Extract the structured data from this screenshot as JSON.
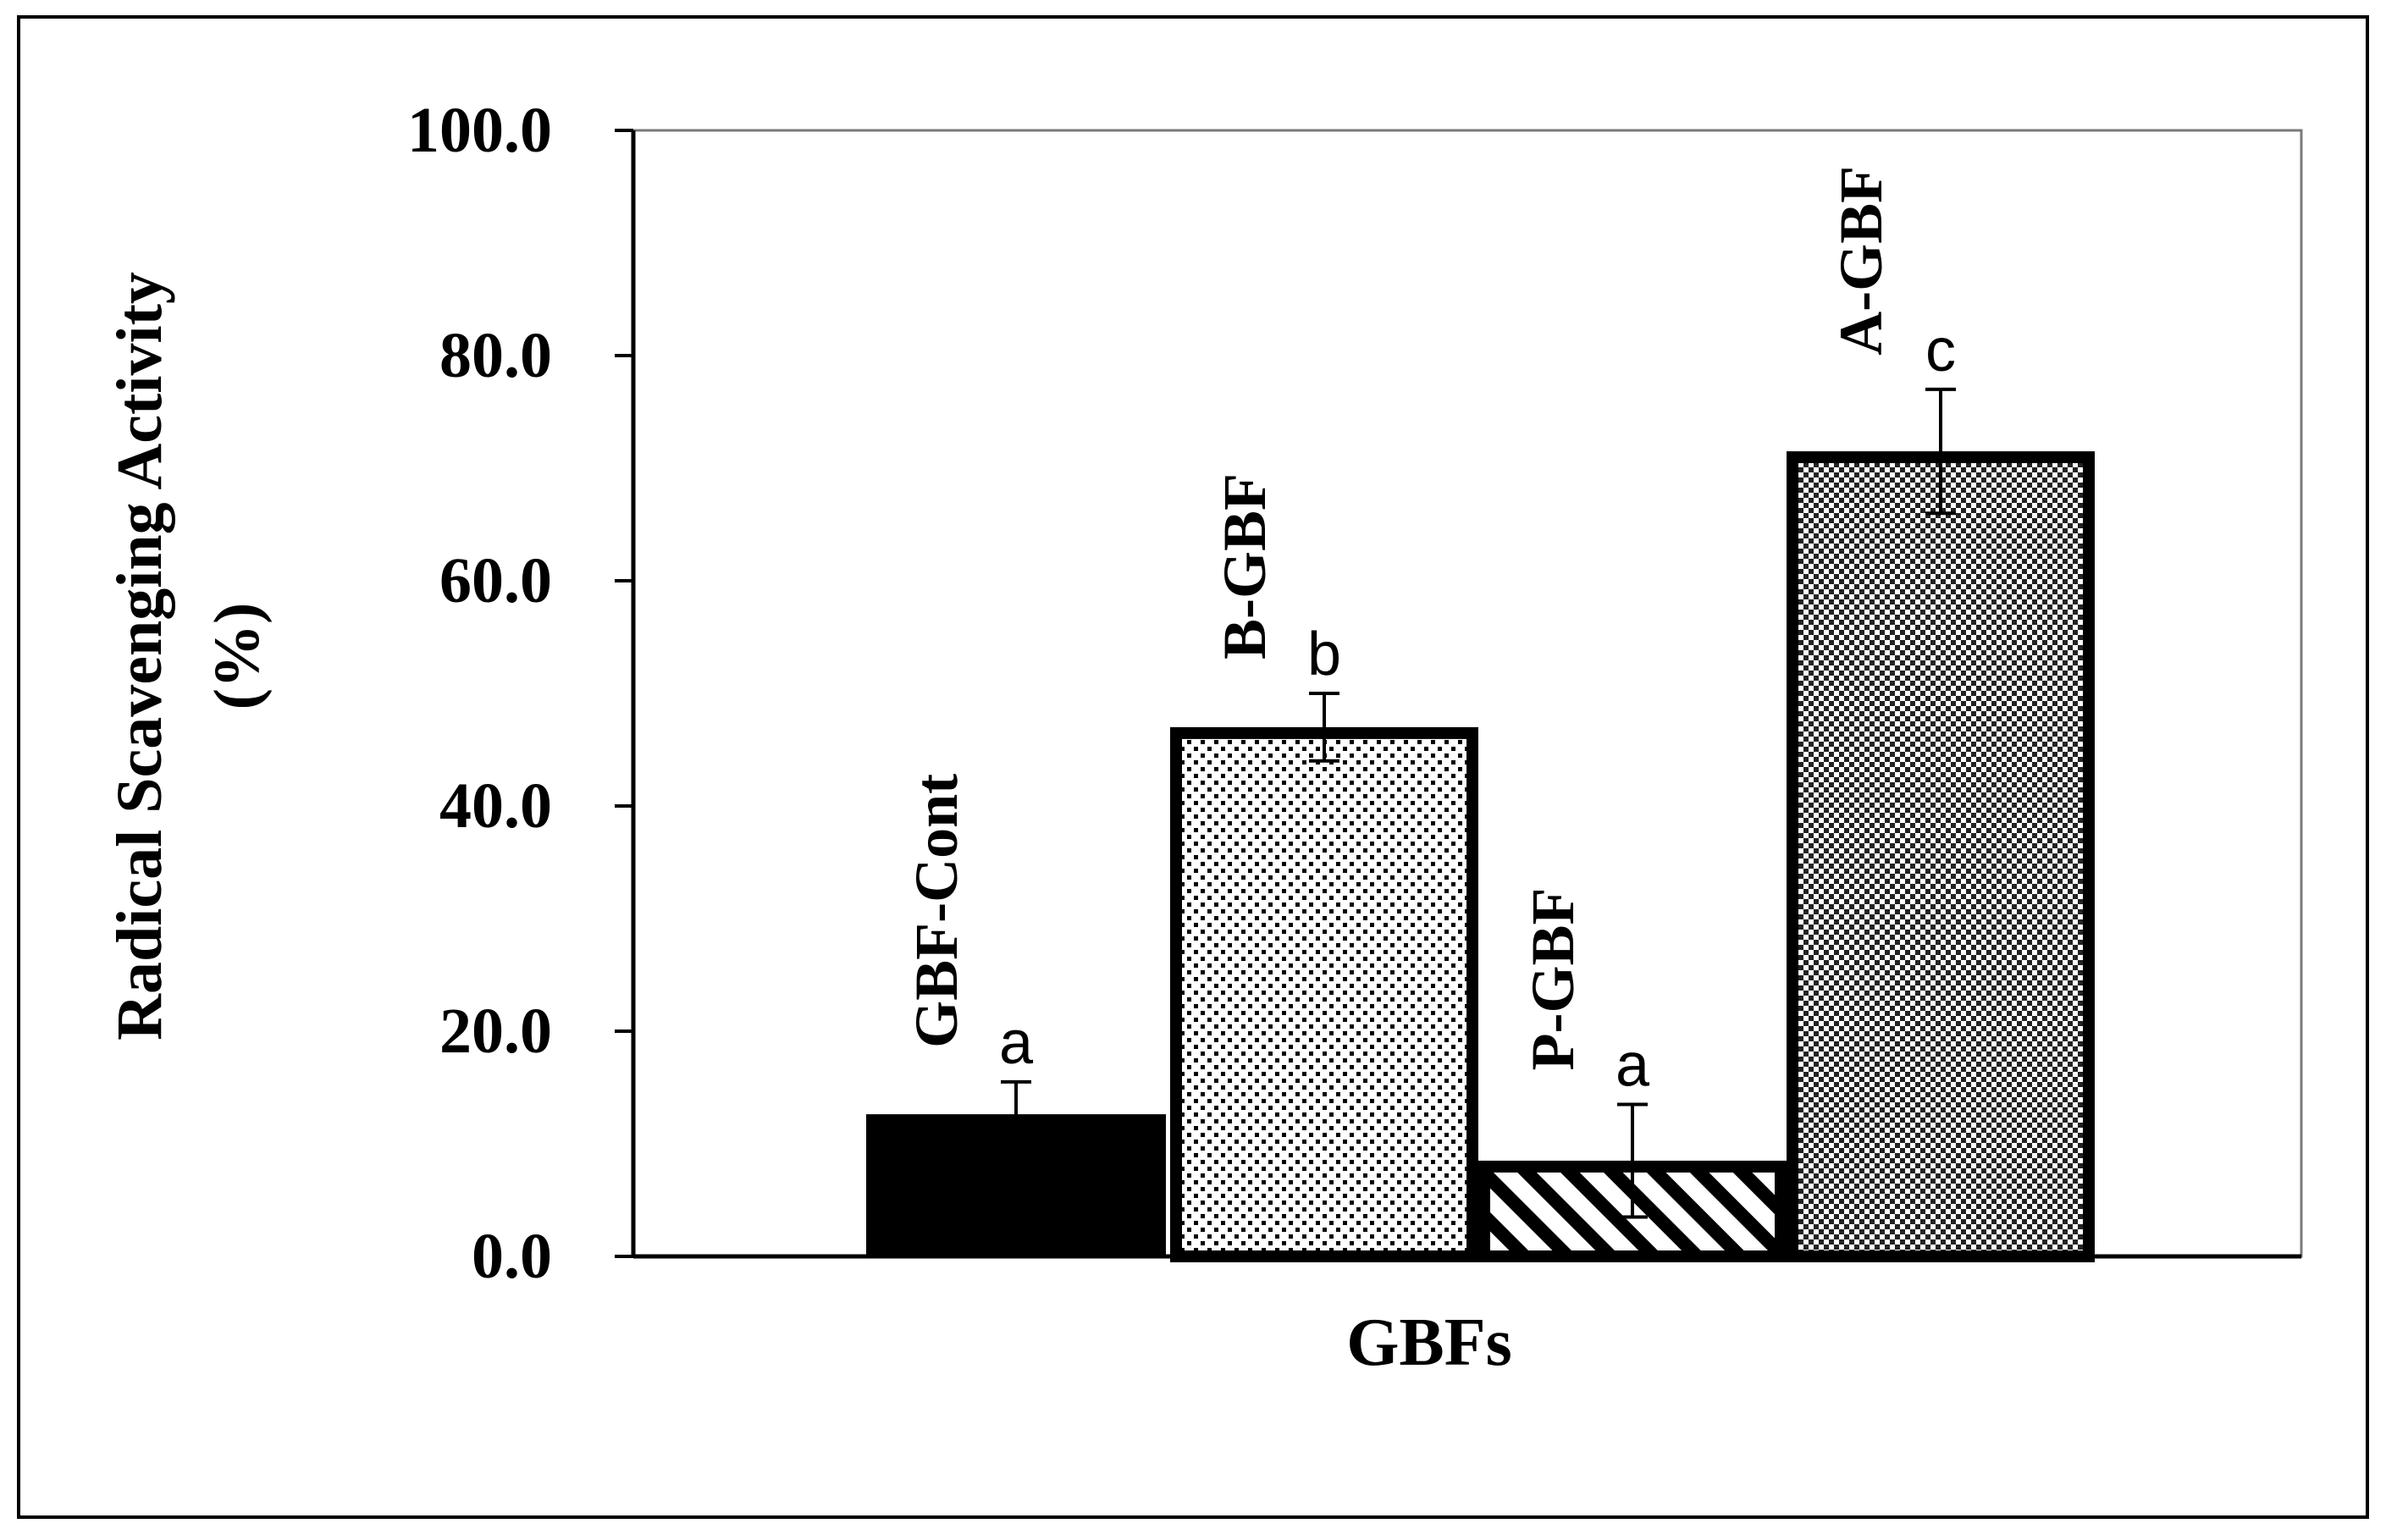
{
  "chart_data": {
    "type": "bar",
    "categories": [
      "GBF-Cont",
      "B-GBF",
      "P-GBF",
      "A-GBF"
    ],
    "values": [
      13.0,
      47.0,
      8.5,
      71.5
    ],
    "errors": [
      2.5,
      3.0,
      5.0,
      5.5
    ],
    "significance": [
      "a",
      "b",
      "a",
      "c"
    ],
    "fills": [
      "solid-black",
      "dots",
      "diagonal-hatch",
      "checker"
    ],
    "xlabel": "GBFs",
    "ylabel_line1": "Radical Scavenging Activity",
    "ylabel_line2": "(%)",
    "ylim": [
      0,
      100
    ],
    "yticks": [
      "0.0",
      "20.0",
      "40.0",
      "60.0",
      "80.0",
      "100.0"
    ],
    "grid": false,
    "legend": "none"
  }
}
